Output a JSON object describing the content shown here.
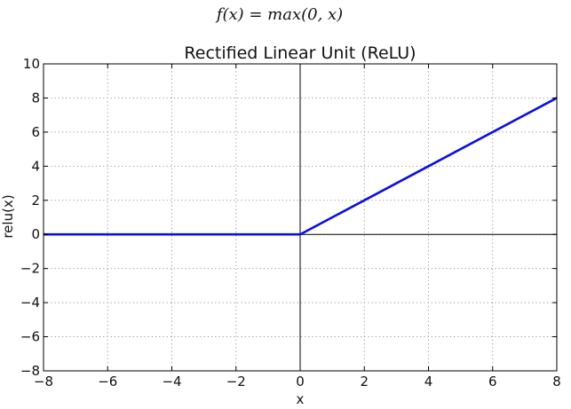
{
  "formula": "f(x) = max(0, x)",
  "chart_data": {
    "type": "line",
    "title": "Rectified Linear Unit (ReLU)",
    "xlabel": "x",
    "ylabel": "relu(x)",
    "xlim": [
      -8,
      8
    ],
    "ylim": [
      -8,
      10
    ],
    "xticks": [
      -8,
      -6,
      -4,
      -2,
      0,
      2,
      4,
      6,
      8
    ],
    "yticks": [
      -8,
      -6,
      -4,
      -2,
      0,
      2,
      4,
      6,
      8,
      10
    ],
    "xtick_labels": [
      "−8",
      "−6",
      "−4",
      "−2",
      "0",
      "2",
      "4",
      "6",
      "8"
    ],
    "ytick_labels": [
      "−8",
      "−6",
      "−4",
      "−2",
      "0",
      "2",
      "4",
      "6",
      "8",
      "10"
    ],
    "grid": true,
    "series": [
      {
        "color": "#0b10e0",
        "x": [
          -8,
          0,
          8
        ],
        "y": [
          0,
          0,
          8
        ]
      }
    ],
    "zero_lines": {
      "x": 0,
      "y": 0,
      "color": "#000000"
    }
  }
}
